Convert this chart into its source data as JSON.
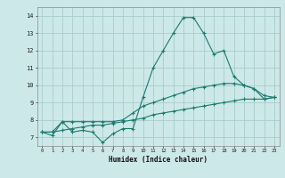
{
  "title": "",
  "xlabel": "Humidex (Indice chaleur)",
  "ylabel": "",
  "xlim": [
    -0.5,
    23.5
  ],
  "ylim": [
    6.5,
    14.5
  ],
  "yticks": [
    7,
    8,
    9,
    10,
    11,
    12,
    13,
    14
  ],
  "xticks": [
    0,
    1,
    2,
    3,
    4,
    5,
    6,
    7,
    8,
    9,
    10,
    11,
    12,
    13,
    14,
    15,
    16,
    17,
    18,
    19,
    20,
    21,
    22,
    23
  ],
  "bg_color": "#cde8e8",
  "grid_color": "#aacccc",
  "line_color": "#1a7a6e",
  "line1_x": [
    0,
    1,
    2,
    3,
    4,
    5,
    6,
    7,
    8,
    9,
    10,
    11,
    12,
    13,
    14,
    15,
    16,
    17,
    18,
    19,
    20,
    21,
    22,
    23
  ],
  "line1_y": [
    7.3,
    7.1,
    7.9,
    7.3,
    7.4,
    7.3,
    6.7,
    7.2,
    7.5,
    7.5,
    9.3,
    11.0,
    12.0,
    13.0,
    13.9,
    13.9,
    13.0,
    11.8,
    12.0,
    10.5,
    10.0,
    9.8,
    9.2,
    9.3
  ],
  "line2_x": [
    0,
    1,
    2,
    3,
    4,
    5,
    6,
    7,
    8,
    9,
    10,
    11,
    12,
    13,
    14,
    15,
    16,
    17,
    18,
    19,
    20,
    21,
    22,
    23
  ],
  "line2_y": [
    7.3,
    7.3,
    7.9,
    7.9,
    7.9,
    7.9,
    7.9,
    7.9,
    8.0,
    8.4,
    8.8,
    9.0,
    9.2,
    9.4,
    9.6,
    9.8,
    9.9,
    10.0,
    10.1,
    10.1,
    10.0,
    9.8,
    9.4,
    9.3
  ],
  "line3_x": [
    0,
    1,
    2,
    3,
    4,
    5,
    6,
    7,
    8,
    9,
    10,
    11,
    12,
    13,
    14,
    15,
    16,
    17,
    18,
    19,
    20,
    21,
    22,
    23
  ],
  "line3_y": [
    7.3,
    7.3,
    7.4,
    7.5,
    7.6,
    7.7,
    7.7,
    7.8,
    7.9,
    8.0,
    8.1,
    8.3,
    8.4,
    8.5,
    8.6,
    8.7,
    8.8,
    8.9,
    9.0,
    9.1,
    9.2,
    9.2,
    9.2,
    9.3
  ]
}
